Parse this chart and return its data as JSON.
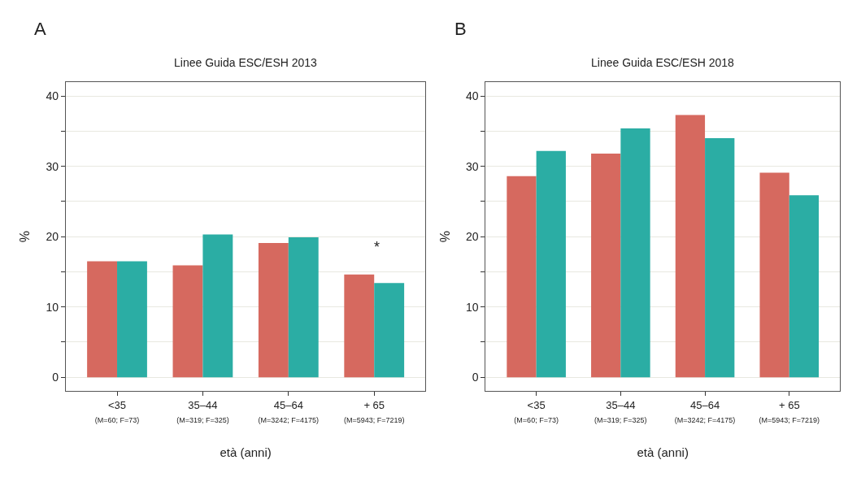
{
  "chart_data": [
    {
      "type": "bar",
      "title": "Linee Guida ESC/ESH 2013",
      "xlabel": "età (anni)",
      "ylabel": "%",
      "annotations": [
        "A",
        "*"
      ],
      "categories": [
        "<35\n(M=60; F=73)",
        "35–44\n(M=319; F=325)",
        "45–64\n(M=3242; F=4175)",
        "+ 65\n(M=5943; F=7219)"
      ],
      "series": [
        {
          "color": "#d6695f",
          "values": [
            16.5,
            15.9,
            19.1,
            14.6
          ]
        },
        {
          "color": "#2bada4",
          "values": [
            16.5,
            20.3,
            19.9,
            13.4
          ]
        }
      ],
      "ylim": [
        -2,
        42
      ],
      "yticks": [
        0,
        {
          "value": 5,
          "label": null
        },
        10,
        {
          "value": 15,
          "label": null
        },
        20,
        {
          "value": 25,
          "label": null
        },
        30,
        {
          "value": 35,
          "label": null
        },
        40
      ],
      "grid": "y"
    },
    {
      "type": "bar",
      "title": "Linee Guida ESC/ESH 2018",
      "xlabel": "età (anni)",
      "ylabel": "%",
      "annotations": [
        "B"
      ],
      "categories": [
        "<35\n(M=60; F=73)",
        "35–44\n(M=319; F=325)",
        "45–64\n(M=3242; F=4175)",
        "+ 65\n(M=5943; F=7219)"
      ],
      "series": [
        {
          "color": "#d6695f",
          "values": [
            28.6,
            31.8,
            37.3,
            29.1
          ]
        },
        {
          "color": "#2bada4",
          "values": [
            32.2,
            35.4,
            34.0,
            25.9
          ]
        }
      ],
      "ylim": [
        -2,
        42
      ],
      "yticks": [
        0,
        {
          "value": 5,
          "label": null
        },
        10,
        {
          "value": 15,
          "label": null
        },
        20,
        {
          "value": 25,
          "label": null
        },
        30,
        {
          "value": 35,
          "label": null
        },
        40
      ],
      "grid": "y"
    }
  ]
}
